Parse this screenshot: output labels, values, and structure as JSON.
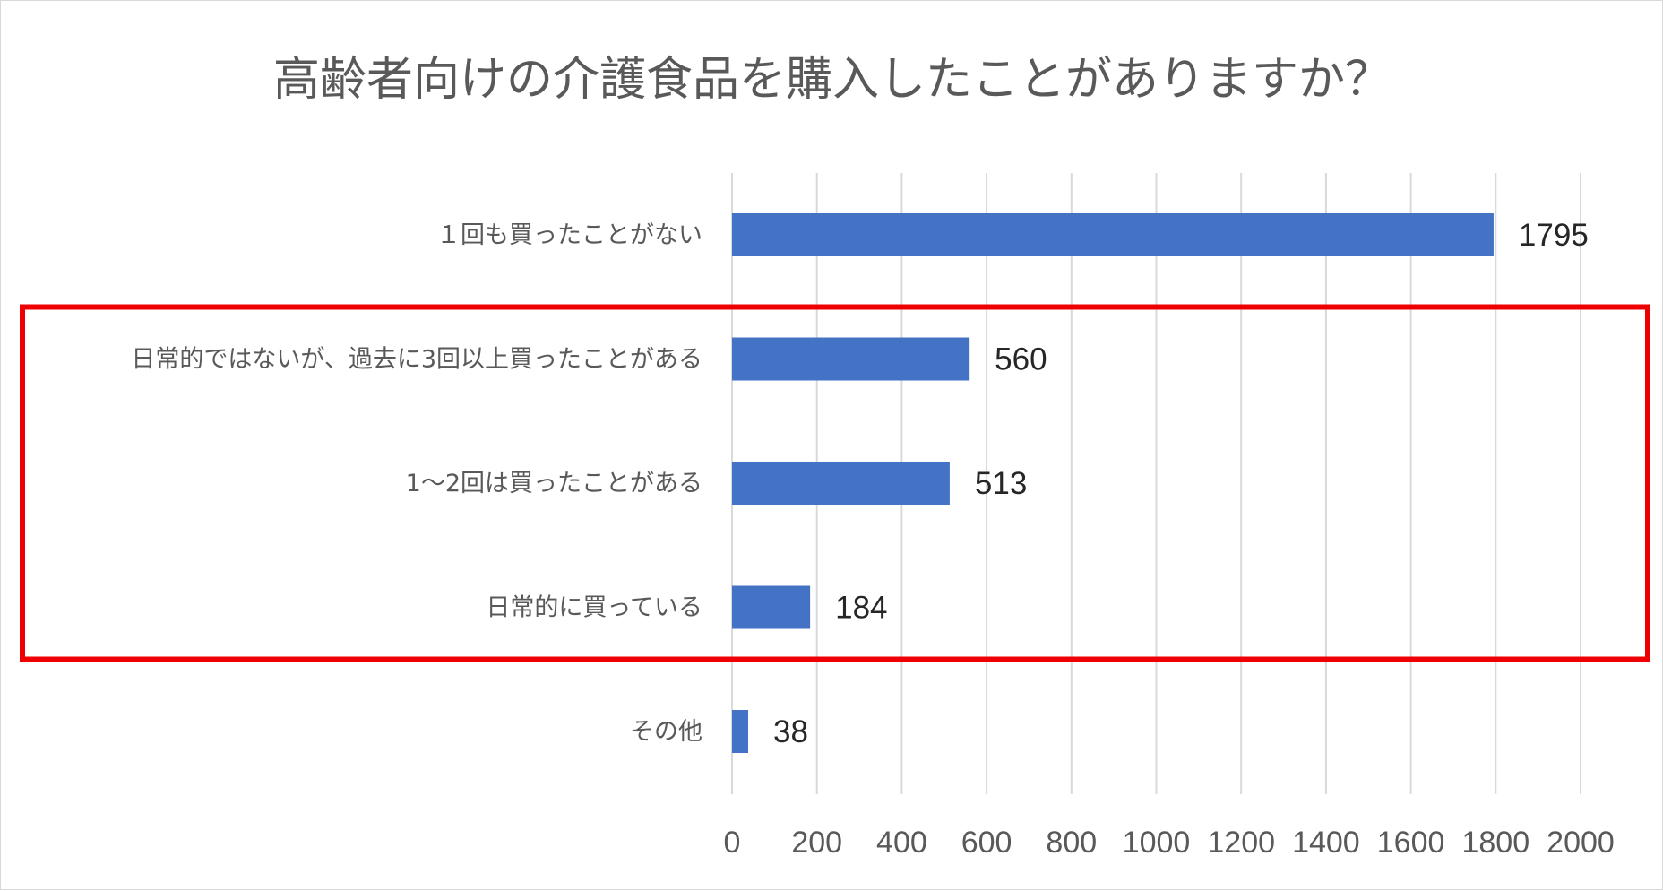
{
  "chart_data": {
    "type": "bar",
    "orientation": "horizontal",
    "title": "高齢者向けの介護食品を購入したことがありますか？",
    "categories": [
      "１回も買ったことがない",
      "日常的ではないが、過去に3回以上買ったことがある",
      "1～2回は買ったことがある",
      "日常的に買っている",
      "その他"
    ],
    "values": [
      1795,
      560,
      513,
      184,
      38
    ],
    "xlim": [
      0,
      2000
    ],
    "ticks": [
      0,
      200,
      400,
      600,
      800,
      1000,
      1200,
      1400,
      1600,
      1800,
      2000
    ],
    "grid": "vertical",
    "data_labels": true,
    "highlight": {
      "categories": [
        1,
        2,
        3
      ],
      "color": "#ee0000"
    },
    "colors": {
      "bar": "#4472c4",
      "grid": "#d9d9d9",
      "text": "#595959",
      "value_text": "#262626"
    }
  }
}
